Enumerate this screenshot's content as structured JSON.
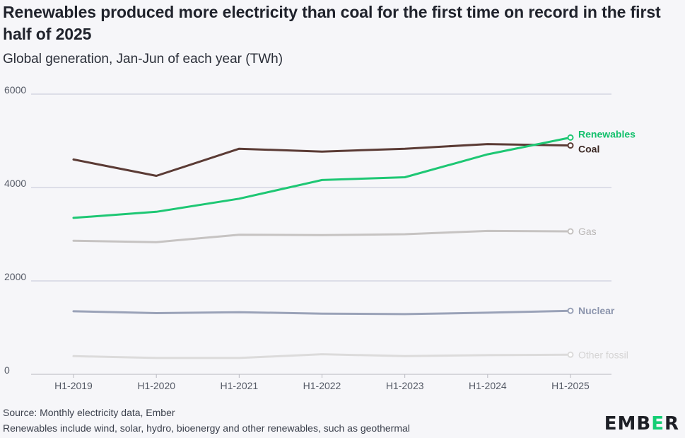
{
  "header": {
    "title": "Renewables produced more electricity than coal for the first time on record in the first half of 2025",
    "subtitle": "Global generation, Jan-Jun of each year (TWh)"
  },
  "footer": {
    "source": "Source: Monthly electricity data, Ember",
    "note": "Renewables include wind, solar, hydro, bioenergy and other renewables, such as geothermal"
  },
  "logo": {
    "text_before": "EMB",
    "text_accent": "E",
    "text_after": "R"
  },
  "chart_data": {
    "type": "line",
    "categories": [
      "H1-2019",
      "H1-2020",
      "H1-2021",
      "H1-2022",
      "H1-2023",
      "H1-2024",
      "H1-2025"
    ],
    "ylim": [
      0,
      6000
    ],
    "yticks": [
      0,
      2000,
      4000,
      6000
    ],
    "grid": true,
    "legend": "end-labels",
    "series": [
      {
        "name": "Coal",
        "color": "#5b3b35",
        "values": [
          4600,
          4250,
          4830,
          4770,
          4830,
          4930,
          4900
        ]
      },
      {
        "name": "Renewables",
        "color": "#1ec774",
        "values": [
          3350,
          3480,
          3760,
          4160,
          4220,
          4710,
          5070
        ]
      },
      {
        "name": "Gas",
        "color": "#c6c3c2",
        "values": [
          2860,
          2830,
          2990,
          2980,
          3000,
          3070,
          3060
        ]
      },
      {
        "name": "Nuclear",
        "color": "#9aa2b8",
        "values": [
          1350,
          1310,
          1330,
          1300,
          1290,
          1320,
          1360
        ]
      },
      {
        "name": "Other fossil",
        "color": "#dcdbdb",
        "values": [
          390,
          350,
          350,
          430,
          390,
          410,
          420
        ]
      }
    ]
  }
}
